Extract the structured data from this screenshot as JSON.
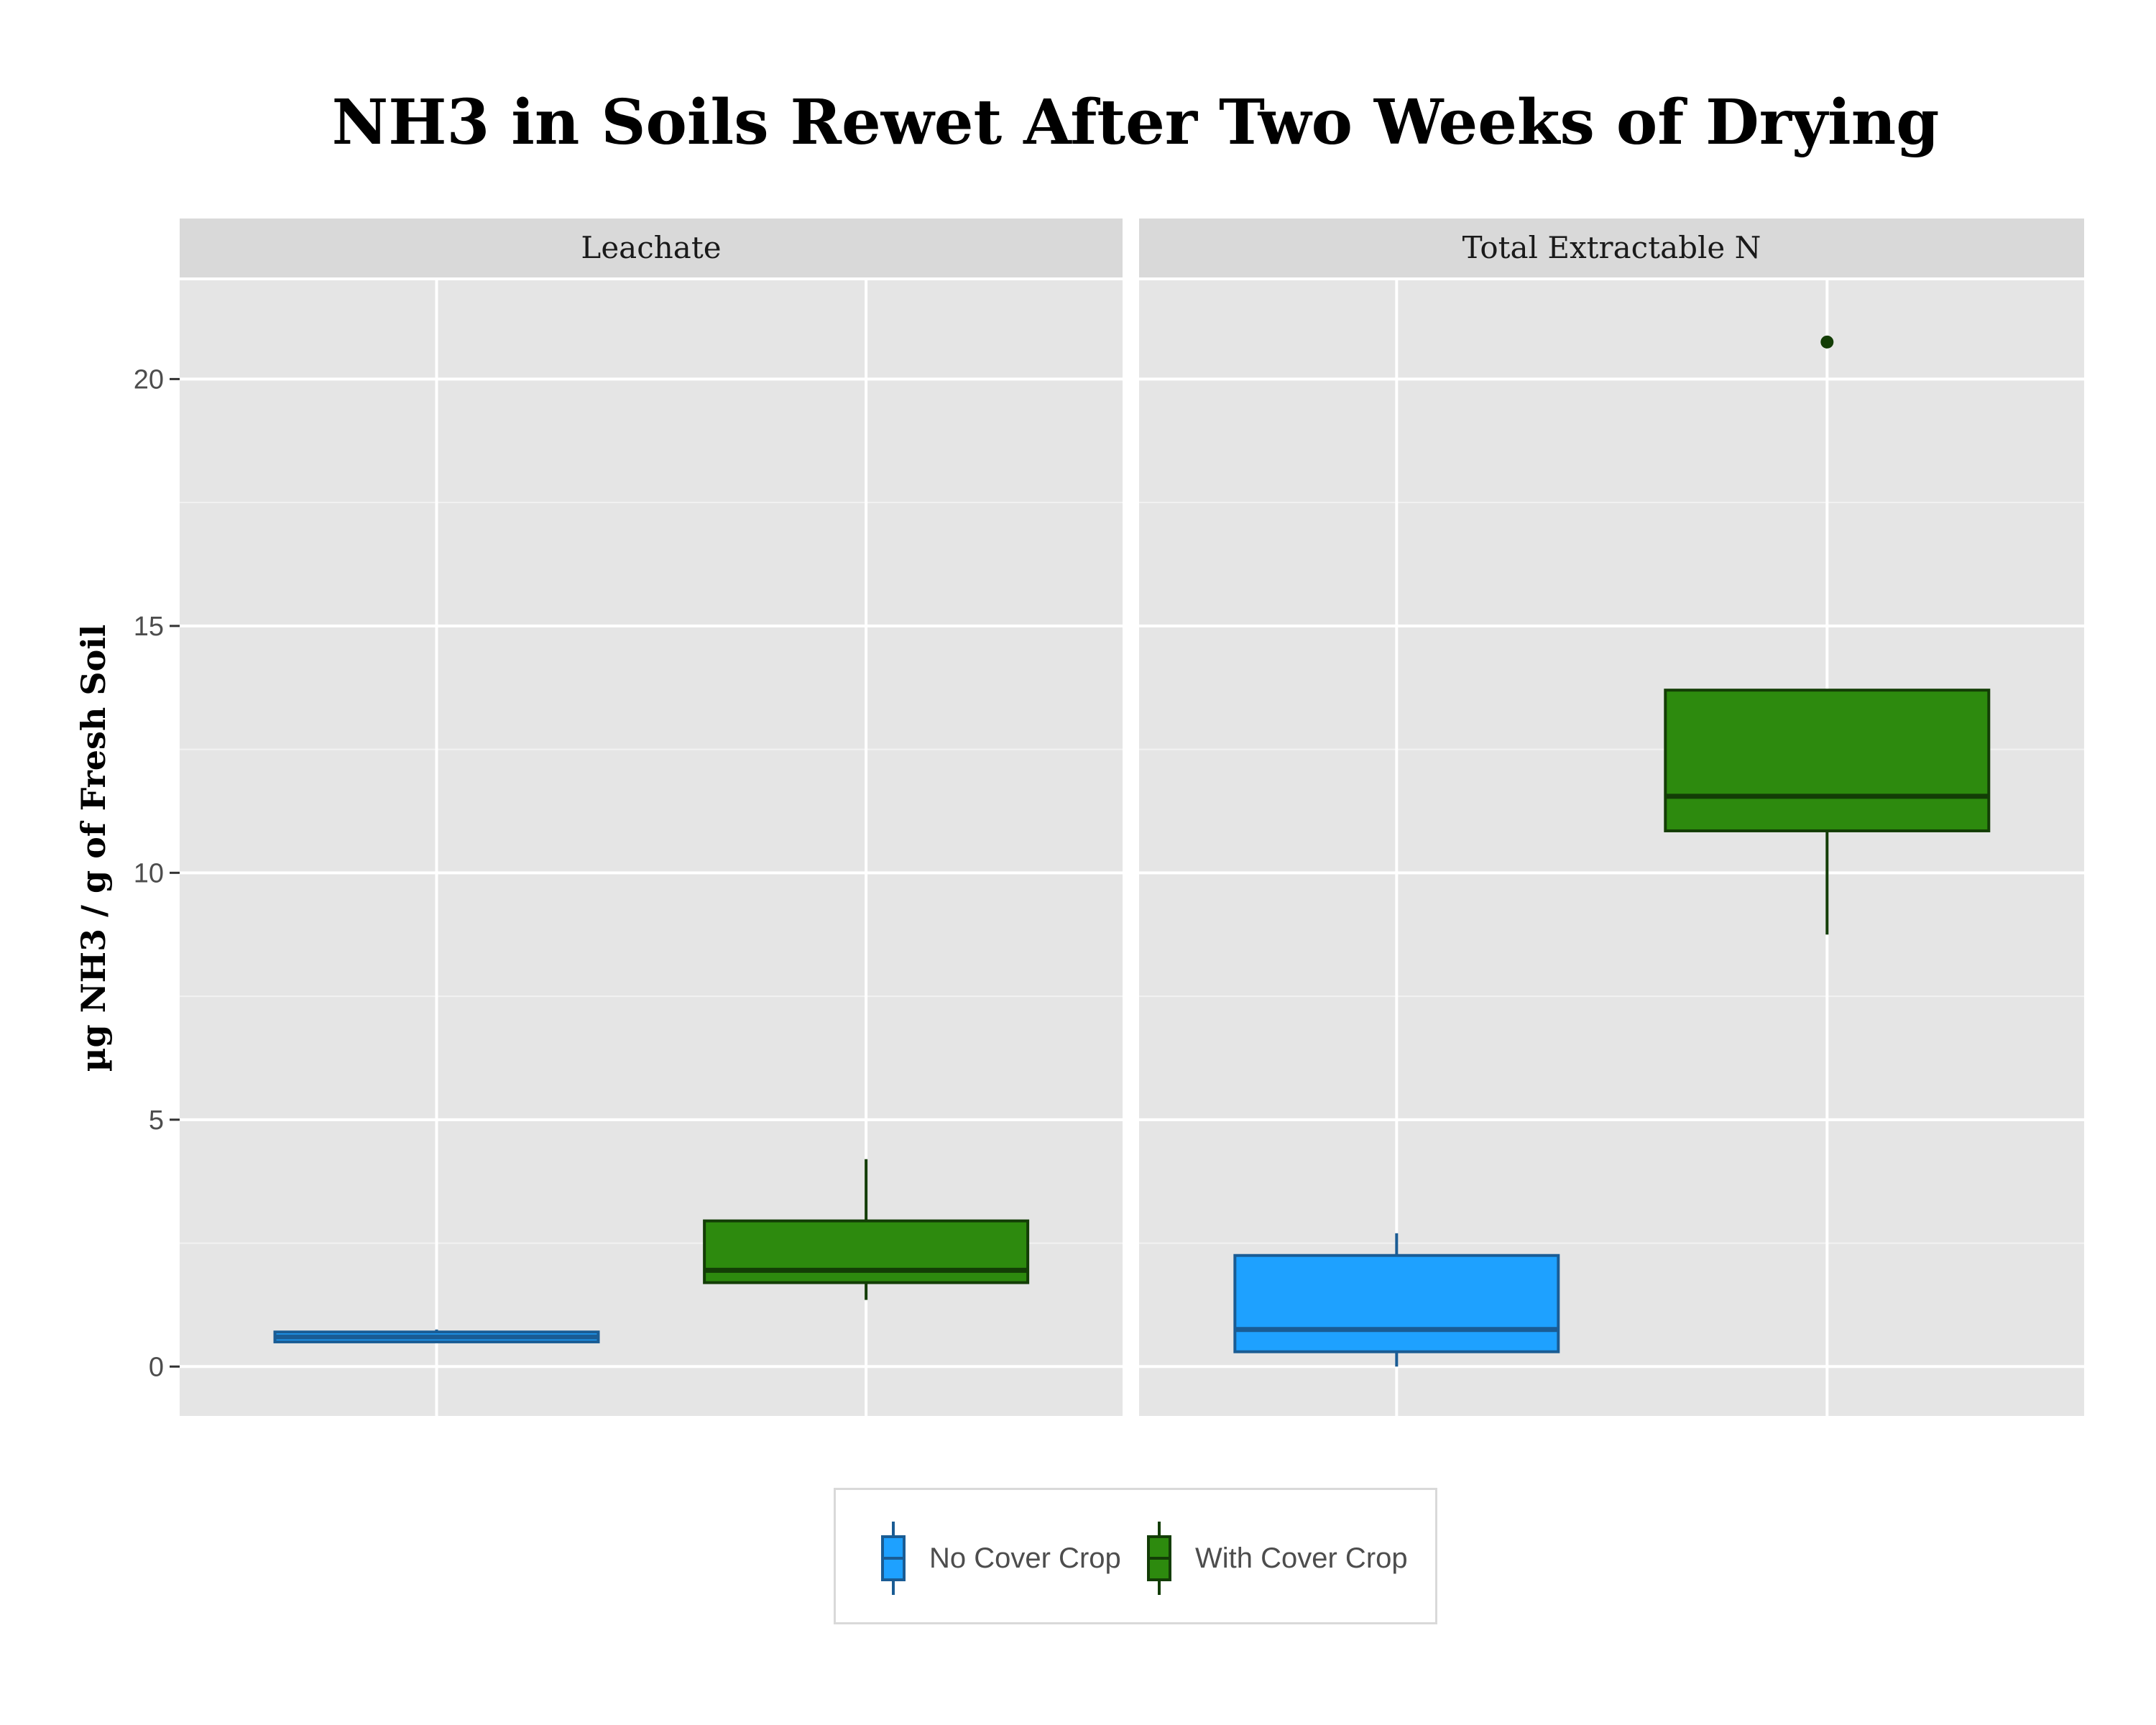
{
  "chart_data": {
    "type": "boxplot",
    "title": "NH3 in Soils Rewet After Two Weeks of Drying",
    "ylabel": "µg NH3 / g of Fresh Soil",
    "xlabel": "",
    "ylim": [
      -1,
      22
    ],
    "yticks": [
      0,
      5,
      10,
      15,
      20
    ],
    "grid": true,
    "legend_position": "bottom",
    "series": [
      {
        "name": "No Cover Crop",
        "fill": "#1ea1ff",
        "stroke": "#1a5c94"
      },
      {
        "name": "With Cover Crop",
        "fill": "#2d8a0e",
        "stroke": "#133d06"
      }
    ],
    "facets": [
      {
        "label": "Leachate",
        "boxes": [
          {
            "series": "No Cover Crop",
            "whisker_low": 0.5,
            "q1": 0.5,
            "median": 0.6,
            "q3": 0.7,
            "whisker_high": 0.75,
            "outliers": []
          },
          {
            "series": "With Cover Crop",
            "whisker_low": 1.35,
            "q1": 1.7,
            "median": 1.95,
            "q3": 2.95,
            "whisker_high": 4.2,
            "outliers": []
          }
        ]
      },
      {
        "label": "Total Extractable N",
        "boxes": [
          {
            "series": "No Cover Crop",
            "whisker_low": 0.0,
            "q1": 0.3,
            "median": 0.75,
            "q3": 2.25,
            "whisker_high": 2.7,
            "outliers": []
          },
          {
            "series": "With Cover Crop",
            "whisker_low": 8.75,
            "q1": 10.85,
            "median": 11.55,
            "q3": 13.7,
            "whisker_high": 13.7,
            "outliers": [
              20.75
            ]
          }
        ]
      }
    ]
  }
}
